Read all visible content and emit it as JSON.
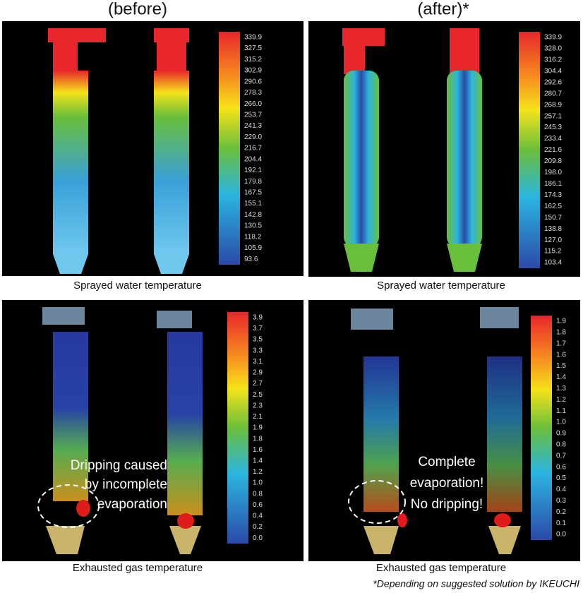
{
  "header": {
    "before": "(before)",
    "after": "(after)*"
  },
  "panels": [
    {
      "caption": "Sprayed water temperature",
      "scale": [
        "339.9",
        "327.5",
        "315.2",
        "302.9",
        "290.6",
        "278.3",
        "266.0",
        "253.7",
        "241.3",
        "229.0",
        "216.7",
        "204.4",
        "192.1",
        "179.8",
        "167.5",
        "155.1",
        "142.8",
        "130.5",
        "118.2",
        "105.9",
        "93.6"
      ]
    },
    {
      "caption": "Sprayed water temperature",
      "scale": [
        "339.9",
        "328.0",
        "316.2",
        "304.4",
        "292.6",
        "280.7",
        "268.9",
        "257.1",
        "245.3",
        "233.4",
        "221.6",
        "209.8",
        "198.0",
        "186.1",
        "174.3",
        "162.5",
        "150.7",
        "138.8",
        "127.0",
        "115.2",
        "103.4"
      ]
    },
    {
      "caption": "Exhausted gas temperature",
      "scale": [
        "3.9",
        "3.7",
        "3.5",
        "3.3",
        "3.1",
        "2.9",
        "2.7",
        "2.5",
        "2.3",
        "2.1",
        "1.9",
        "1.8",
        "1.6",
        "1.4",
        "1.2",
        "1.0",
        "0.8",
        "0.6",
        "0.4",
        "0.2",
        "0.0"
      ],
      "annotation": [
        "Dripping caused",
        "by incomplete",
        "evaporation"
      ]
    },
    {
      "caption": "Exhausted gas temperature",
      "scale": [
        "1.9",
        "1.8",
        "1.7",
        "1.6",
        "1.5",
        "1.4",
        "1.3",
        "1.2",
        "1.1",
        "1.0",
        "0.9",
        "0.8",
        "0.7",
        "0.6",
        "0.5",
        "0.4",
        "0.3",
        "0.2",
        "0.1",
        "0.0"
      ],
      "annotation": [
        "Complete",
        "evaporation!",
        "No dripping!"
      ]
    }
  ],
  "footnote": "*Depending on suggested solution by IKEUCHI"
}
